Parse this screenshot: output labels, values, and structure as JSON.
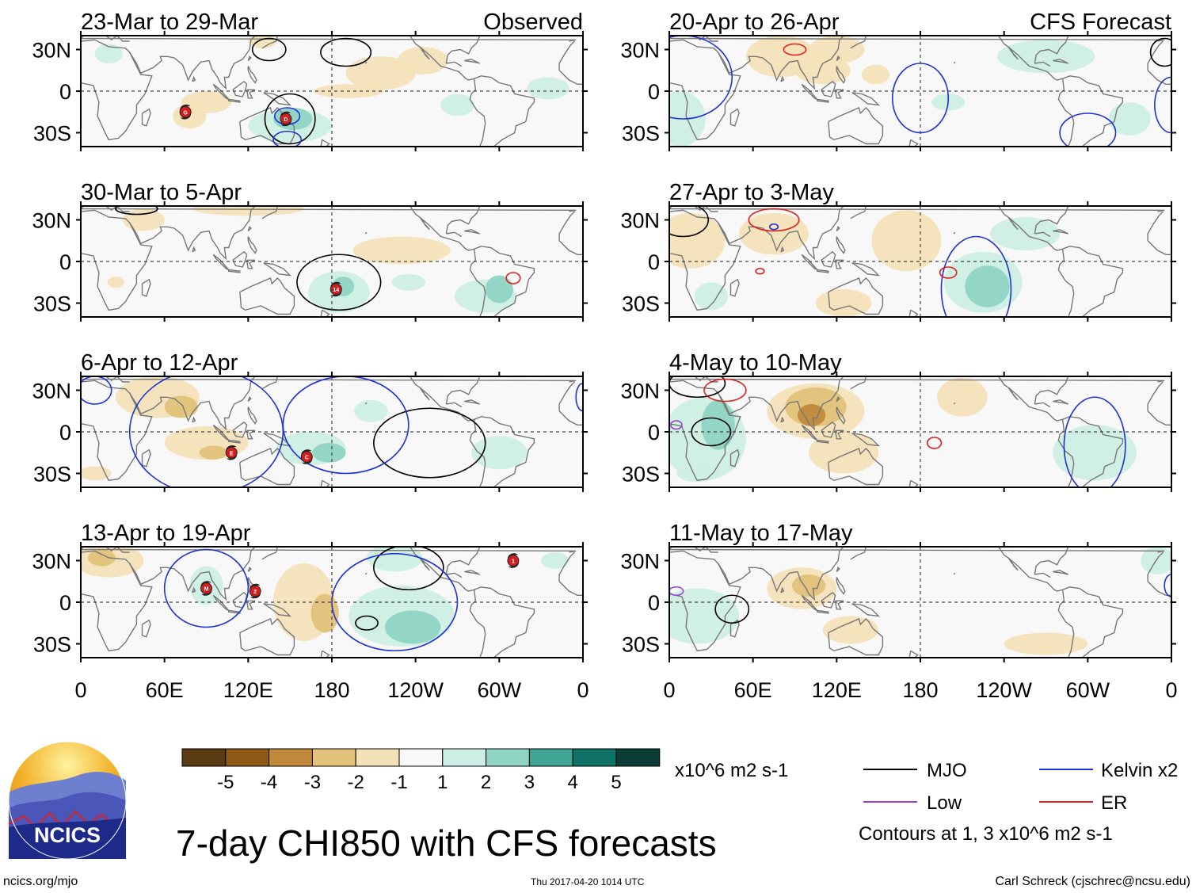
{
  "colors": {
    "brown_dark": "#5a3a10",
    "brown": "#8c5a14",
    "tan": "#c08a3c",
    "tan_light": "#e2c27a",
    "cream": "#f3e2b8",
    "white_band": "#f8f8f8",
    "teal_pale": "#cdeee4",
    "teal_light": "#8fd4c3",
    "teal": "#3ea592",
    "teal_dark": "#0e7366",
    "teal_darkest": "#0a3d35",
    "mjo": "#000000",
    "kelvin": "#1e32d8",
    "low": "#9b3fd1",
    "er": "#e01e1e",
    "coast": "#777777"
  },
  "observed_header": "Observed",
  "forecast_header": "CFS Forecast",
  "panels_left": [
    {
      "title": "23-Mar to 29-Mar"
    },
    {
      "title": "30-Mar to 5-Apr"
    },
    {
      "title": "6-Apr to 12-Apr"
    },
    {
      "title": "13-Apr to 19-Apr"
    }
  ],
  "panels_right": [
    {
      "title": "20-Apr to 26-Apr"
    },
    {
      "title": "27-Apr to 3-May"
    },
    {
      "title": "4-May to 10-May"
    },
    {
      "title": "11-May to 17-May"
    }
  ],
  "lat_labels": [
    "30N",
    "0",
    "30S"
  ],
  "lon_labels": [
    "0",
    "60E",
    "120E",
    "180",
    "120W",
    "60W",
    "0"
  ],
  "cyclone_labels": {
    "p0": [
      "G",
      "D"
    ],
    "p1": [
      "14"
    ],
    "p2": [
      "E",
      "C"
    ],
    "p3": [
      "M",
      "2",
      "1"
    ]
  },
  "colorbar": {
    "labels": [
      "-5",
      "-4",
      "-3",
      "-2",
      "-1",
      "1",
      "2",
      "3",
      "4",
      "5"
    ],
    "units": "x10^6 m2 s-1"
  },
  "legend": {
    "mjo": "MJO",
    "kelvin": "Kelvin x2",
    "low": "Low",
    "er": "ER",
    "contours": "Contours at 1, 3 x10^6 m2 s-1"
  },
  "logo_text": "NCICS",
  "main_title": "7-day CHI850 with CFS forecasts",
  "footer": {
    "url": "ncics.org/mjo",
    "timestamp": "Thu 2017-04-20 1014 UTC",
    "author": "Carl Schreck (cjschrec@ncsu.edu)"
  }
}
